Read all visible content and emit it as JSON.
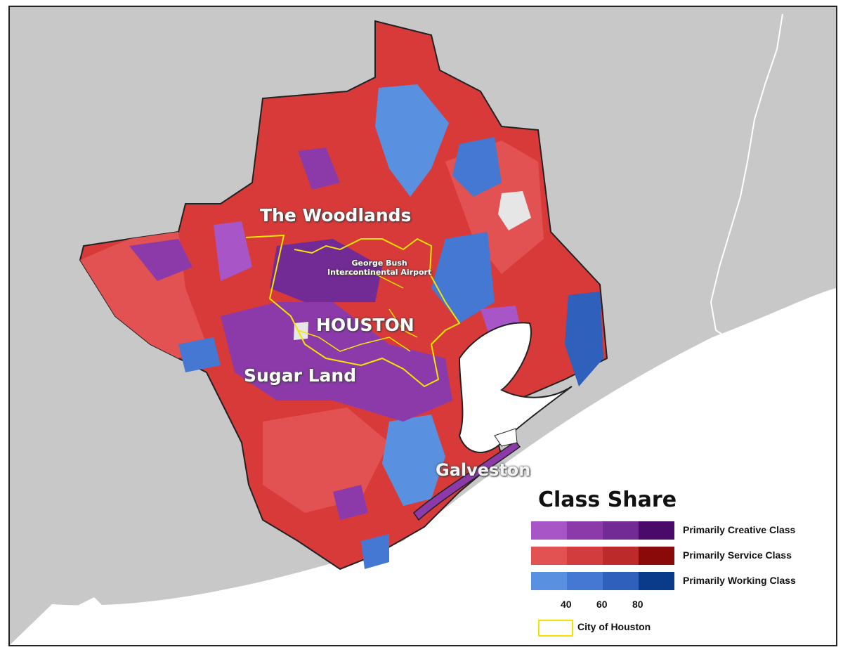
{
  "map": {
    "labels": {
      "woodlands": "The Woodlands",
      "houston": "HOUSTON",
      "sugar_land": "Sugar Land",
      "galveston": "Galveston",
      "airport_line1": "George Bush",
      "airport_line2": "Intercontinental Airport"
    },
    "colors": {
      "background_land": "#c8c8c8",
      "water": "#ffffff",
      "city_boundary": "#f2e600"
    }
  },
  "legend": {
    "title": "Class Share",
    "classes": [
      {
        "label": "Primarily Creative Class",
        "colors": [
          "#a855c8",
          "#8c3aaa",
          "#722a94",
          "#4a0a6a"
        ]
      },
      {
        "label": "Primarily Service Class",
        "colors": [
          "#e25252",
          "#d23c3c",
          "#bd2a2a",
          "#8a0a0a"
        ]
      },
      {
        "label": "Primarily Working Class",
        "colors": [
          "#5a90e0",
          "#4478d2",
          "#2e60bc",
          "#0a3a8a"
        ]
      }
    ],
    "ticks": [
      "40",
      "60",
      "80"
    ],
    "city_key_label": "City of Houston"
  }
}
